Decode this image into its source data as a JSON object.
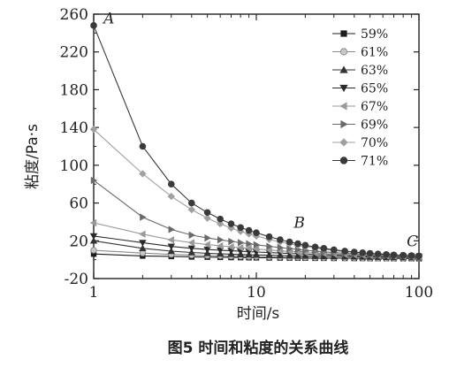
{
  "chart_data": {
    "type": "line",
    "xscale": "log",
    "xlim": [
      1,
      100
    ],
    "ylim": [
      -20,
      260
    ],
    "xticks": [
      1,
      10,
      100
    ],
    "yticks": [
      -20,
      20,
      60,
      100,
      140,
      180,
      220,
      260
    ],
    "xlabel": "时间/s",
    "ylabel": "粘度/Pa·s",
    "caption": "图5 时间和粘度的关系曲线",
    "legend_position": "top-right",
    "grid": false,
    "x": [
      1,
      2,
      3,
      4,
      5,
      6,
      7,
      8,
      9,
      10,
      12,
      14,
      16,
      18,
      20,
      23,
      26,
      30,
      35,
      40,
      45,
      50,
      56,
      63,
      70,
      80,
      90,
      100
    ],
    "series": [
      {
        "name": "59%",
        "marker": "square",
        "values": [
          6,
          4,
          3.5,
          3,
          2.8,
          2.6,
          2.4,
          2.3,
          2.2,
          2.1,
          2,
          1.9,
          1.8,
          1.8,
          1.7,
          1.6,
          1.6,
          1.5,
          1.5,
          1.4,
          1.4,
          1.3,
          1.3,
          1.3,
          1.2,
          1.2,
          1.2,
          1.1
        ]
      },
      {
        "name": "61%",
        "marker": "circle-open",
        "values": [
          10,
          7,
          5.6,
          4.9,
          4.4,
          4.1,
          3.8,
          3.6,
          3.4,
          3.2,
          3,
          2.8,
          2.6,
          2.5,
          2.4,
          2.3,
          2.2,
          2.1,
          2,
          1.9,
          1.8,
          1.8,
          1.7,
          1.7,
          1.6,
          1.6,
          1.5,
          1.5
        ]
      },
      {
        "name": "63%",
        "marker": "triangle-up",
        "values": [
          20,
          12,
          9,
          7.6,
          6.8,
          6.2,
          5.8,
          5.5,
          5.2,
          5,
          4.7,
          4.4,
          4.2,
          4,
          3.9,
          3.7,
          3.5,
          3.4,
          3.2,
          3.1,
          3,
          2.9,
          2.8,
          2.7,
          2.6,
          2.5,
          2.4,
          2.3
        ]
      },
      {
        "name": "65%",
        "marker": "triangle-down",
        "values": [
          25,
          18,
          14,
          12,
          10.8,
          10,
          9.4,
          8.9,
          8.5,
          8.1,
          7.5,
          7,
          6.6,
          6.2,
          5.9,
          5.5,
          5.2,
          4.9,
          4.6,
          4.3,
          4.1,
          3.9,
          3.7,
          3.5,
          3.3,
          3.1,
          3,
          2.9
        ]
      },
      {
        "name": "67%",
        "marker": "triangle-left",
        "values": [
          39,
          27,
          21,
          18,
          16,
          14.7,
          13.6,
          12.7,
          12,
          11.3,
          10.2,
          9.4,
          8.7,
          8.1,
          7.6,
          7,
          6.5,
          6,
          5.5,
          5.1,
          4.8,
          4.5,
          4.3,
          4,
          3.8,
          3.6,
          3.4,
          3.2
        ]
      },
      {
        "name": "69%",
        "marker": "triangle-right",
        "values": [
          84,
          45,
          32,
          26,
          23,
          21,
          19.3,
          18,
          16.8,
          15.8,
          14.1,
          12.8,
          11.7,
          10.8,
          10,
          9.1,
          8.3,
          7.5,
          6.8,
          6.2,
          5.7,
          5.3,
          4.9,
          4.5,
          4.2,
          3.9,
          3.6,
          3.4
        ]
      },
      {
        "name": "70%",
        "marker": "diamond",
        "values": [
          138,
          91,
          67,
          53,
          44,
          38,
          33.5,
          30,
          27.2,
          25,
          21.4,
          18.8,
          16.8,
          15.2,
          13.9,
          12.3,
          11,
          9.7,
          8.5,
          7.6,
          6.9,
          6.3,
          5.8,
          5.3,
          4.9,
          4.5,
          4.2,
          3.9
        ]
      },
      {
        "name": "71%",
        "marker": "circle",
        "values": [
          248,
          120,
          80,
          60,
          50,
          43,
          38,
          34,
          31,
          28.5,
          24.3,
          21.2,
          18.8,
          16.9,
          15.3,
          13.4,
          12,
          10.5,
          9.1,
          8.1,
          7.3,
          6.7,
          6.1,
          5.5,
          5,
          4.6,
          4.3,
          4
        ]
      }
    ],
    "annotations": [
      {
        "text": "A",
        "x": 1.15,
        "y": 250
      },
      {
        "text": "B",
        "x": 17,
        "y": 34
      },
      {
        "text": "C",
        "x": 84,
        "y": 14
      }
    ],
    "colors": {
      "axis": "#222222",
      "series": [
        "#1c1c1c",
        "#8a8a8a",
        "#333333",
        "#2a2a2a",
        "#9a9a9a",
        "#6a6a6a",
        "#a0a0a0",
        "#3a3a3a"
      ]
    }
  }
}
